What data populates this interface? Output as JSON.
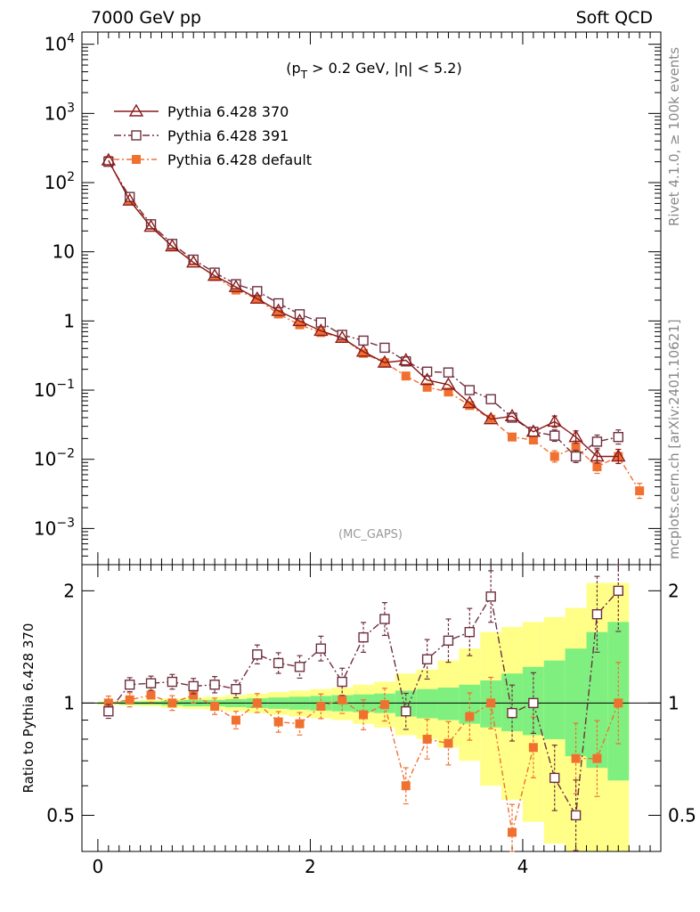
{
  "header": {
    "left": "7000 GeV pp",
    "right": "Soft QCD"
  },
  "side_labels": {
    "top": "Rivet 4.1.0, ≥ 100k events",
    "bottom": "mcplots.cern.ch [arXiv:2401.10621]"
  },
  "colors": {
    "s370": "#8b1a1a",
    "s391": "#6e3040",
    "sdef": "#f07030",
    "band_inner": "#7ff07f",
    "band_outer": "#ffff88"
  },
  "chart_data": [
    {
      "type": "line",
      "panel": "main",
      "title_parts": {
        "open": "(p",
        "sub": "T",
        "rest": " > 0.2 GeV, |η| < 5.2)"
      },
      "annotation": "(MC_GAPS)",
      "xlim": [
        -0.15,
        5.3
      ],
      "yscale": "log",
      "ylim": [
        0.0003,
        15000
      ],
      "y_ticks": [
        {
          "value": 0.001,
          "base": "10",
          "exp": "−3"
        },
        {
          "value": 0.01,
          "base": "10",
          "exp": "−2"
        },
        {
          "value": 0.1,
          "base": "10",
          "exp": "−1"
        },
        {
          "value": 1,
          "base": "1",
          "exp": ""
        },
        {
          "value": 10,
          "base": "10",
          "exp": ""
        },
        {
          "value": 100,
          "base": "10",
          "exp": "2"
        },
        {
          "value": 1000,
          "base": "10",
          "exp": "3"
        },
        {
          "value": 10000,
          "base": "10",
          "exp": "4"
        }
      ],
      "x": [
        0.1,
        0.3,
        0.5,
        0.7,
        0.9,
        1.1,
        1.3,
        1.5,
        1.7,
        1.9,
        2.1,
        2.3,
        2.5,
        2.7,
        2.9,
        3.1,
        3.3,
        3.5,
        3.7,
        3.9,
        4.1,
        4.3,
        4.5,
        4.7,
        4.9,
        5.1
      ],
      "series": [
        {
          "name": "Pythia 6.428 370",
          "marker": "triangle",
          "values": [
            210,
            55,
            23,
            12,
            7,
            4.5,
            3.1,
            2.1,
            1.4,
            1.0,
            0.72,
            0.57,
            0.36,
            0.25,
            0.27,
            0.14,
            0.12,
            0.065,
            0.038,
            0.042,
            0.025,
            0.035,
            0.021,
            0.011,
            0.011,
            null
          ]
        },
        {
          "name": "Pythia 6.428 391",
          "marker": "open-square",
          "values": [
            200,
            62,
            25,
            13,
            7.7,
            5.0,
            3.4,
            2.7,
            1.8,
            1.25,
            0.95,
            0.63,
            0.52,
            0.41,
            0.26,
            0.185,
            0.18,
            0.1,
            0.074,
            0.04,
            0.025,
            0.022,
            0.011,
            0.018,
            0.021,
            null
          ]
        },
        {
          "name": "Pythia 6.428 default",
          "marker": "filled-square",
          "values": [
            210,
            56,
            24,
            12,
            7.3,
            4.4,
            2.8,
            2.1,
            1.26,
            0.88,
            0.68,
            0.58,
            0.34,
            0.25,
            0.16,
            0.11,
            0.094,
            0.06,
            0.038,
            0.021,
            0.019,
            0.011,
            0.015,
            0.0078,
            0.011,
            0.0035
          ]
        }
      ]
    },
    {
      "type": "line",
      "panel": "ratio",
      "ylabel": "Ratio to Pythia 6.428 370",
      "yscale": "log",
      "ylim": [
        0.4,
        2.35
      ],
      "y_ticks": [
        {
          "value": 0.5,
          "label": "0.5"
        },
        {
          "value": 1,
          "label": "1"
        },
        {
          "value": 2,
          "label": "2"
        }
      ],
      "xlim": [
        -0.15,
        5.3
      ],
      "x_ticks": [
        {
          "value": 0,
          "label": "0"
        },
        {
          "value": 2,
          "label": "2"
        },
        {
          "value": 4,
          "label": "4"
        }
      ],
      "x": [
        0.1,
        0.3,
        0.5,
        0.7,
        0.9,
        1.1,
        1.3,
        1.5,
        1.7,
        1.9,
        2.1,
        2.3,
        2.5,
        2.7,
        2.9,
        3.1,
        3.3,
        3.5,
        3.7,
        3.9,
        4.1,
        4.3,
        4.5,
        4.7,
        4.9
      ],
      "series": [
        {
          "name": "Pythia 6.428 391",
          "marker": "open-square",
          "values": [
            0.95,
            1.12,
            1.13,
            1.14,
            1.11,
            1.12,
            1.09,
            1.35,
            1.28,
            1.25,
            1.4,
            1.14,
            1.5,
            1.68,
            0.95,
            1.31,
            1.47,
            1.55,
            1.93,
            0.94,
            1.0,
            0.63,
            0.5,
            1.73,
            2.0
          ]
        },
        {
          "name": "Pythia 6.428 default",
          "marker": "filled-square",
          "values": [
            1.0,
            1.02,
            1.05,
            1.0,
            1.05,
            0.98,
            0.9,
            1.0,
            0.89,
            0.88,
            0.98,
            1.02,
            0.93,
            0.99,
            0.6,
            0.8,
            0.78,
            0.92,
            1.0,
            0.45,
            0.76,
            null,
            0.71,
            0.71,
            1.0
          ]
        }
      ],
      "bands": {
        "edges": [
          0,
          0.2,
          0.4,
          0.6,
          0.8,
          1.0,
          1.2,
          1.4,
          1.6,
          1.8,
          2.0,
          2.2,
          2.4,
          2.6,
          2.8,
          3.0,
          3.2,
          3.4,
          3.6,
          3.8,
          4.0,
          4.2,
          4.4,
          4.6,
          4.8,
          5.0
        ],
        "inner_lo": [
          0.995,
          0.99,
          0.99,
          0.985,
          0.98,
          0.98,
          0.975,
          0.97,
          0.965,
          0.96,
          0.955,
          0.95,
          0.945,
          0.94,
          0.92,
          0.91,
          0.9,
          0.88,
          0.86,
          0.84,
          0.82,
          0.8,
          0.72,
          0.67,
          0.62
        ],
        "inner_hi": [
          1.005,
          1.01,
          1.01,
          1.015,
          1.02,
          1.02,
          1.025,
          1.03,
          1.035,
          1.04,
          1.045,
          1.05,
          1.055,
          1.06,
          1.08,
          1.09,
          1.1,
          1.12,
          1.15,
          1.2,
          1.25,
          1.3,
          1.4,
          1.55,
          1.65
        ],
        "outer_lo": [
          0.99,
          0.985,
          0.98,
          0.97,
          0.965,
          0.96,
          0.95,
          0.94,
          0.93,
          0.92,
          0.91,
          0.9,
          0.88,
          0.86,
          0.82,
          0.8,
          0.76,
          0.7,
          0.6,
          0.55,
          0.48,
          0.42,
          0.4,
          0.4,
          0.4
        ],
        "outer_hi": [
          1.01,
          1.015,
          1.02,
          1.03,
          1.035,
          1.04,
          1.05,
          1.06,
          1.07,
          1.08,
          1.09,
          1.1,
          1.12,
          1.14,
          1.2,
          1.23,
          1.3,
          1.4,
          1.55,
          1.6,
          1.65,
          1.7,
          1.8,
          2.1,
          2.1
        ]
      }
    }
  ]
}
